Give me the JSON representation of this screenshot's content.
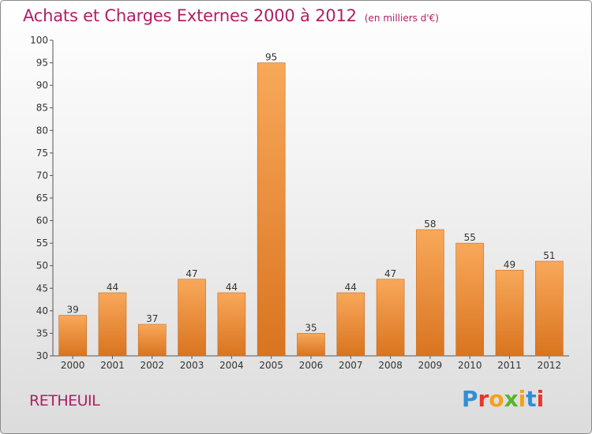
{
  "header": {
    "title": "Achats et Charges Externes 2000 à 2012",
    "subtitle": "(en milliers d'€)"
  },
  "footer": {
    "commune": "RETHEUIL",
    "logo_text": "Proxiti",
    "logo_colors": [
      "#2f8fd6",
      "#e8372a",
      "#f2a21b",
      "#59b42f",
      "#f2a21b",
      "#2f8fd6",
      "#e8372a"
    ]
  },
  "colors": {
    "title": "#b01e64",
    "bar_light": "#f8a85a",
    "bar_dark": "#d9741f",
    "bar_edge": "#c86a1c"
  },
  "chart_data": {
    "type": "bar",
    "title": "Achats et Charges Externes 2000 à 2012",
    "subtitle": "(en milliers d'€)",
    "categories": [
      "2000",
      "2001",
      "2002",
      "2003",
      "2004",
      "2005",
      "2006",
      "2007",
      "2008",
      "2009",
      "2010",
      "2011",
      "2012"
    ],
    "values": [
      39,
      44,
      37,
      47,
      44,
      95,
      35,
      44,
      47,
      58,
      55,
      49,
      51
    ],
    "ylim": [
      30,
      100
    ],
    "yticks": [
      30,
      35,
      40,
      45,
      50,
      55,
      60,
      65,
      70,
      75,
      80,
      85,
      90,
      95,
      100
    ],
    "grid": false,
    "data_labels": true
  }
}
